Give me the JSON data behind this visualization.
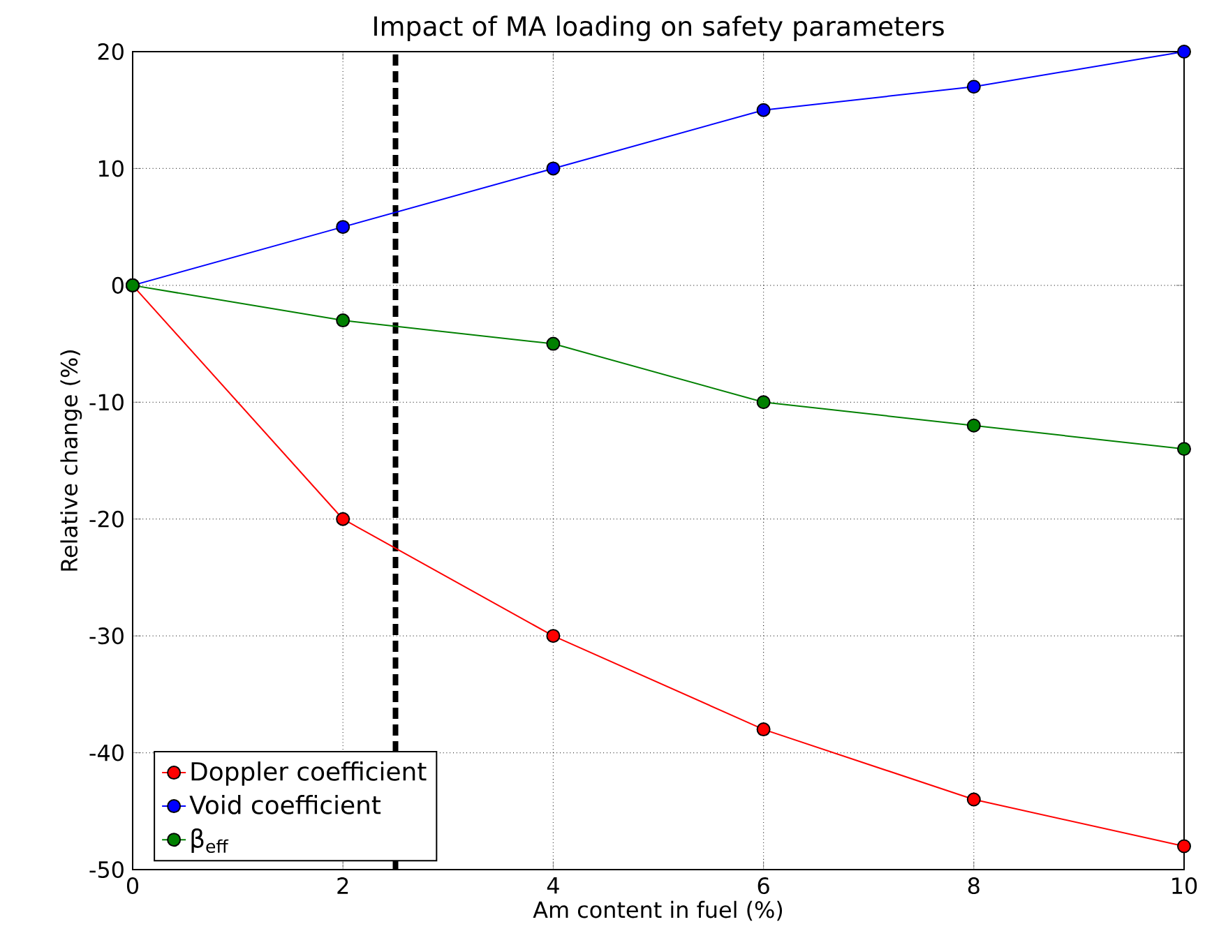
{
  "chart_data": {
    "type": "line",
    "title": "Impact of MA loading on safety parameters",
    "xlabel": "Am content in fuel (%)",
    "ylabel": "Relative change (%)",
    "x": [
      0,
      2,
      4,
      6,
      8,
      10
    ],
    "series": [
      {
        "name": "Doppler coefficient",
        "color": "#ff0000",
        "values": [
          0,
          -20,
          -30,
          -38,
          -44,
          -48
        ]
      },
      {
        "name": "Void coefficient",
        "color": "#0000ff",
        "values": [
          0,
          5,
          10,
          15,
          17,
          20
        ]
      },
      {
        "name": "β$_{eff}$",
        "color": "#008000",
        "values": [
          0,
          -3,
          -5,
          -10,
          -12,
          -14
        ]
      }
    ],
    "xlim": [
      0,
      10
    ],
    "ylim": [
      -50,
      20
    ],
    "xticks": [
      0,
      2,
      4,
      6,
      8,
      10
    ],
    "yticks": [
      -50,
      -40,
      -30,
      -20,
      -10,
      0,
      10,
      20
    ],
    "ref_lines": [
      {
        "axis": "x",
        "value": 2.5,
        "color": "#000000",
        "line_style": "dashed"
      }
    ],
    "grid": true,
    "legend": "bottom left",
    "marker": "circle",
    "line_style": "solid"
  }
}
